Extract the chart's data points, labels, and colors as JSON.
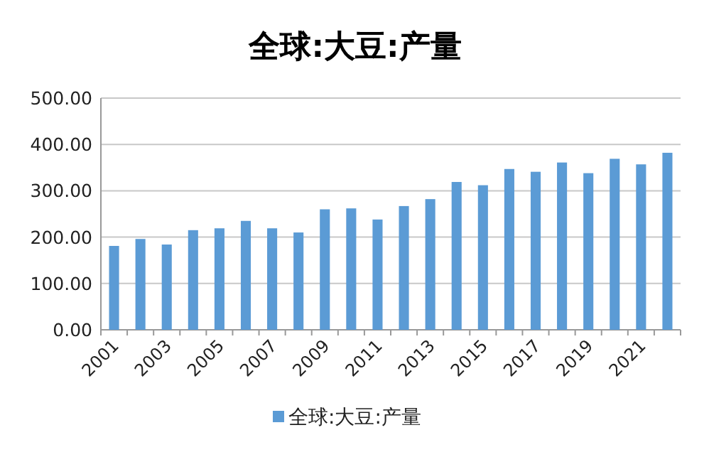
{
  "chart_data": {
    "type": "bar",
    "title": "全球:大豆:产量",
    "categories": [
      "2001",
      null,
      "2003",
      null,
      "2005",
      null,
      "2007",
      null,
      "2009",
      null,
      "2011",
      null,
      "2013",
      null,
      "2015",
      null,
      "2017",
      null,
      "2019",
      null,
      "2021",
      null
    ],
    "series": [
      {
        "name": "全球:大豆:产量",
        "color": "#5b9bd5",
        "values": [
          181,
          196,
          184,
          215,
          219,
          235,
          219,
          210,
          260,
          262,
          238,
          267,
          282,
          319,
          312,
          347,
          341,
          361,
          338,
          369,
          357,
          382
        ]
      }
    ],
    "ylim": [
      0,
      500
    ],
    "yticks": [
      {
        "value": 0,
        "label": "0.00"
      },
      {
        "value": 100,
        "label": "100.00"
      },
      {
        "value": 200,
        "label": "200.00"
      },
      {
        "value": 300,
        "label": "300.00"
      },
      {
        "value": 400,
        "label": "400.00"
      },
      {
        "value": 500,
        "label": "500.00"
      }
    ],
    "grid": "y",
    "legend": "bottom"
  }
}
